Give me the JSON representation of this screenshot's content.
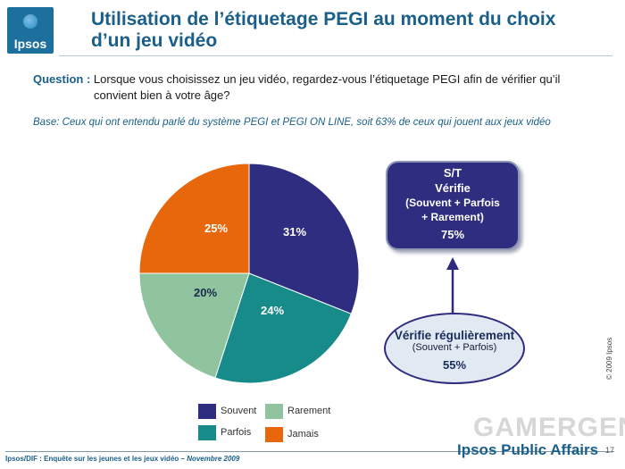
{
  "logo": {
    "text": "Ipsos"
  },
  "header": {
    "title_line1": "Utilisation de l’étiquetage PEGI au moment du choix",
    "title_line2": "d’un jeu vidéo"
  },
  "question": {
    "label": "Question :",
    "line1": " Lorsque vous choisissez un jeu vidéo, regardez-vous l’étiquetage PEGI afin de vérifier qu’il",
    "line2": "convient bien à votre âge?"
  },
  "base": "Base: Ceux qui ont entendu parlé du  système PEGI et PEGI ON LINE, soit 63% de ceux qui jouent aux jeux vidéo",
  "chart_data": {
    "type": "pie",
    "slices": [
      {
        "name": "Souvent",
        "value": 31,
        "label": "31%",
        "color": "#2e2d7f"
      },
      {
        "name": "Parfois",
        "value": 24,
        "label": "24%",
        "color": "#178a8a"
      },
      {
        "name": "Rarement",
        "value": 20,
        "label": "20%",
        "color": "#8fc49f"
      },
      {
        "name": "Jamais",
        "value": 25,
        "label": "25%",
        "color": "#e8670a"
      }
    ],
    "start_angle": "12 o'clock",
    "direction": "clockwise",
    "legend_placement": "bottom"
  },
  "summary_box": {
    "line1": "S/T",
    "line2": "Vérifie",
    "line3": "(Souvent + Parfois",
    "line4": "+ Rarement)",
    "value": "75%",
    "color": "#2e2d7f"
  },
  "oval": {
    "line1": "Vérifie régulièrement",
    "line2": "(Souvent + Parfois)",
    "value": "55%"
  },
  "legend": [
    {
      "label": "Souvent",
      "color": "#2e2d7f"
    },
    {
      "label": "Rarement",
      "color": "#8fc49f"
    },
    {
      "label": "Parfois",
      "color": "#178a8a"
    },
    {
      "label": "Jamais",
      "color": "#e8670a"
    }
  ],
  "copyright": "© 2009 Ipsos",
  "watermark": "GAMERGEN",
  "footer": {
    "text": "Ipsos/DIF : Enquête sur les jeunes et les jeux vidéo – ",
    "date": "Novembre 2009"
  },
  "brand": "Ipsos Public Affairs",
  "page_number": "17"
}
